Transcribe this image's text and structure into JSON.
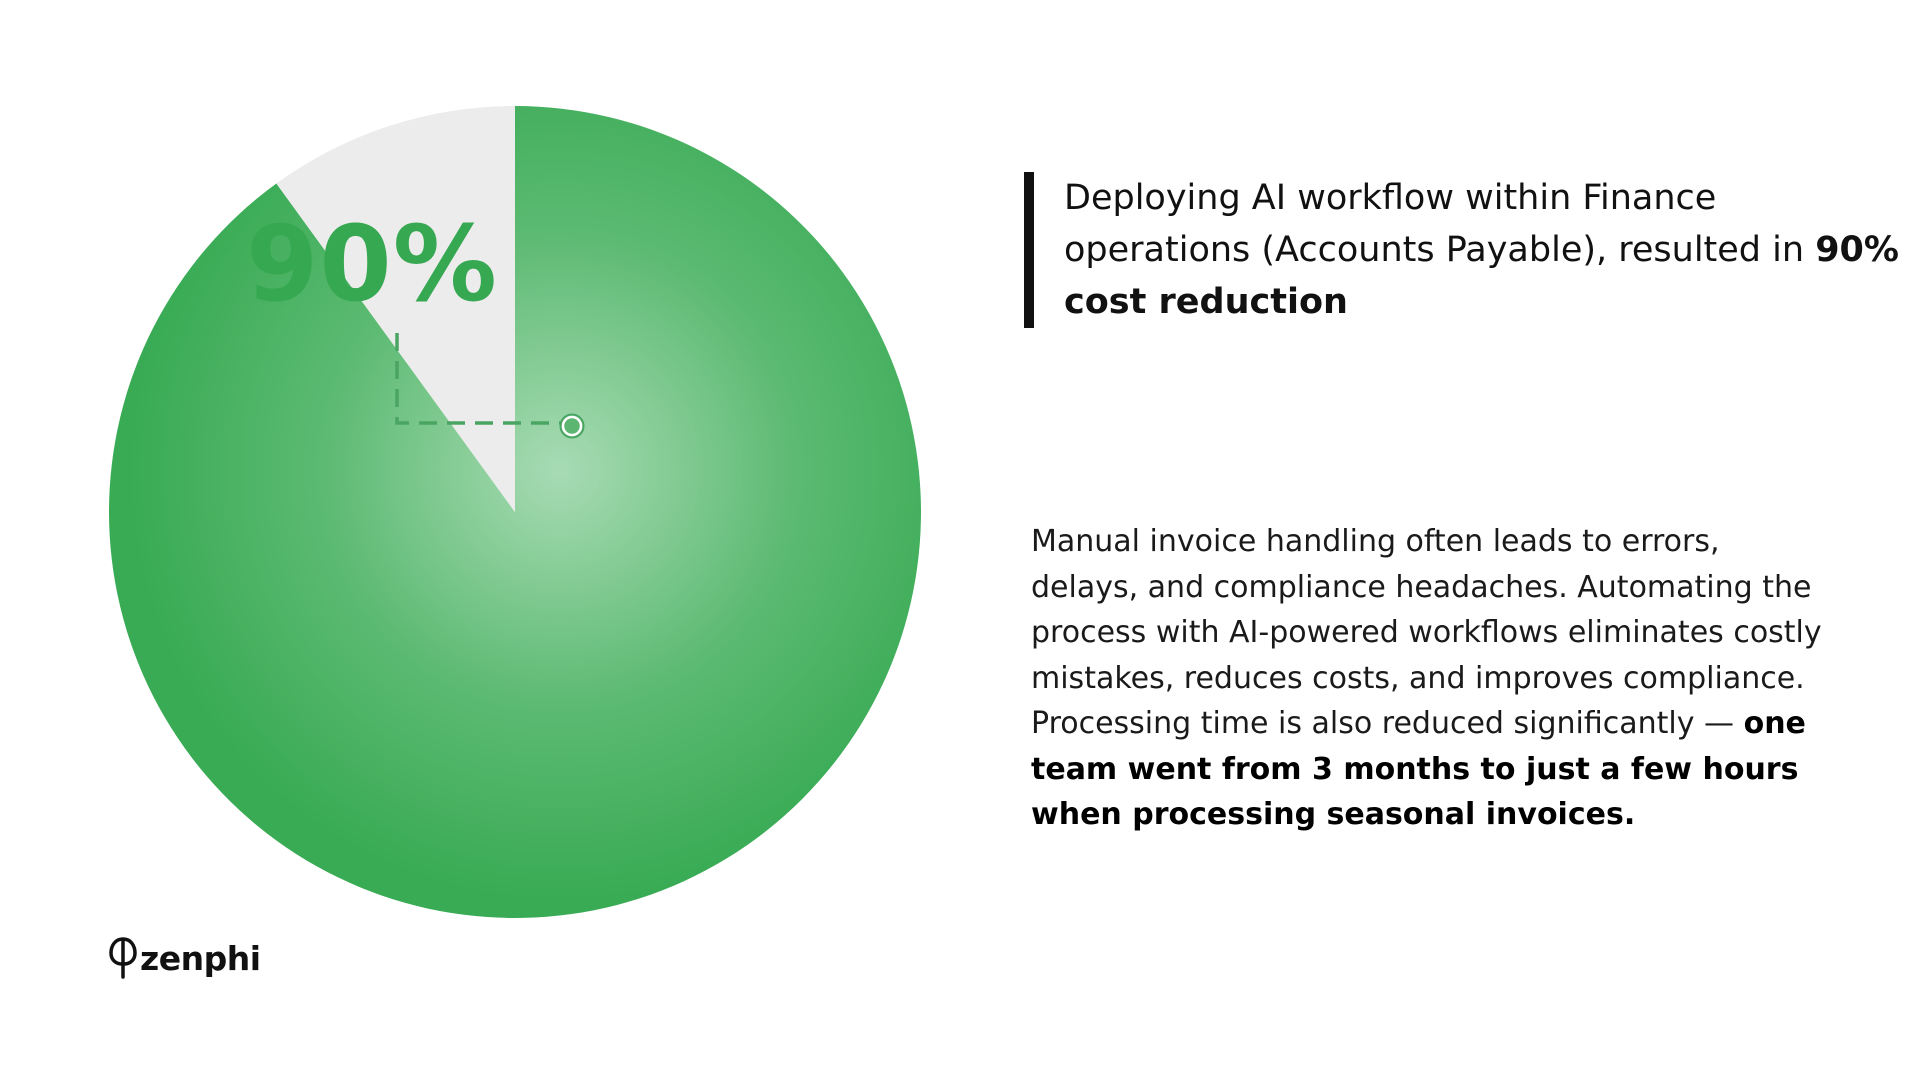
{
  "chart_data": {
    "type": "pie",
    "slices": [
      {
        "label": "90%",
        "value": 90,
        "color": "#39ab55"
      },
      {
        "label": "",
        "value": 10,
        "color": "#ececec"
      }
    ],
    "colors": {
      "main": "#39ab55",
      "highlight": "#a8dbb4",
      "remainder": "#ececec",
      "label": "#37a852",
      "leader_line": "#4aa562"
    }
  },
  "headline": {
    "text": "Deploying AI workflow within Finance operations (Accounts Payable), resulted in",
    "bold": "90% cost reduction"
  },
  "body": {
    "text": "Manual invoice handling often leads to errors, delays, and compliance headaches. Automating the process with AI-powered workflows eliminates costly mistakes, reduces costs, and improves compliance. Processing time is also reduced significantly —",
    "bold": "one team went from 3 months to just a few hours when processing seasonal invoices."
  },
  "logo": {
    "text": "zenphi",
    "icon": "zenphi-logo-icon"
  }
}
